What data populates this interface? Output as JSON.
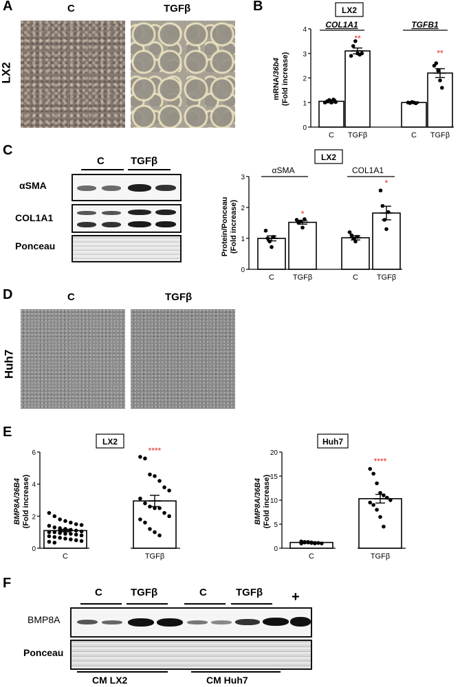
{
  "panels": {
    "A": {
      "letter": "A",
      "col_labels": [
        "C",
        "TGFβ"
      ],
      "row_label": "LX2"
    },
    "B": {
      "letter": "B",
      "cell_line": "LX2",
      "gene1": "COL1A1",
      "gene2": "TGFB1",
      "ylabel_line1_a": "mRNA/",
      "ylabel_line1_b": "36b4",
      "ylabel_line2": "(Fold increase)",
      "sig": [
        "**",
        "**"
      ],
      "ticks": [
        "0",
        "1",
        "2",
        "3",
        "4"
      ],
      "xlabels": [
        "C",
        "TGFβ",
        "C",
        "TGFβ"
      ]
    },
    "C": {
      "letter": "C",
      "group_labels": [
        "C",
        "TGFβ"
      ],
      "blot_labels": [
        "αSMA",
        "COL1A1",
        "Ponceau"
      ],
      "cell_line": "LX2",
      "gene1": "αSMA",
      "gene2": "COL1A1",
      "ylabel_line1": "Protein/Ponceau",
      "ylabel_line2": "(Fold increase)",
      "sig": [
        "*",
        "*"
      ],
      "ticks": [
        "0",
        "1",
        "2",
        "3"
      ],
      "xlabels": [
        "C",
        "TGFβ",
        "C",
        "TGFβ"
      ]
    },
    "D": {
      "letter": "D",
      "col_labels": [
        "C",
        "TGFβ"
      ],
      "row_label": "Huh7"
    },
    "E": {
      "letter": "E",
      "left": {
        "cell_line": "LX2",
        "ylabel_line1": "BMP8A/36B4",
        "ylabel_line2": "(Fold increase)",
        "sig": "****",
        "ticks": [
          "0",
          "2",
          "4",
          "6"
        ],
        "xlabels": [
          "C",
          "TGFβ"
        ]
      },
      "right": {
        "cell_line": "Huh7",
        "ylabel_line1": "BMP8A/36B4",
        "ylabel_line2": "(Fold increase)",
        "sig": "****",
        "ticks": [
          "0",
          "5",
          "10",
          "15",
          "20"
        ],
        "xlabels": [
          "C",
          "TGFβ"
        ]
      }
    },
    "F": {
      "letter": "F",
      "group_labels": [
        "C",
        "TGFβ",
        "C",
        "TGFβ",
        "+"
      ],
      "blot_labels": [
        "BMP8A",
        "Ponceau"
      ],
      "bottom_labels": [
        "CM LX2",
        "CM Huh7"
      ]
    }
  },
  "chart_data": [
    {
      "type": "bar",
      "categories": [
        "C",
        "TGFβ",
        "C",
        "TGFβ"
      ],
      "values": [
        1.05,
        3.1,
        1.0,
        2.2
      ],
      "errors": [
        0.06,
        0.12,
        0.03,
        0.18
      ],
      "points": [
        [
          1.0,
          1.05,
          1.1,
          1.0,
          1.12,
          1.02
        ],
        [
          2.9,
          3.3,
          3.5,
          3.0,
          2.95,
          3.0
        ],
        [
          1.0,
          0.98,
          1.02,
          1.0,
          0.97
        ],
        [
          2.5,
          2.6,
          2.3,
          1.9,
          1.6
        ]
      ],
      "ylim": [
        0,
        4
      ]
    },
    {
      "type": "bar",
      "categories": [
        "C",
        "TGFβ",
        "C",
        "TGFβ"
      ],
      "values": [
        1.0,
        1.52,
        1.02,
        1.82
      ],
      "errors": [
        0.08,
        0.06,
        0.07,
        0.22
      ],
      "points": [
        [
          1.25,
          1.0,
          0.9,
          0.72,
          1.05
        ],
        [
          1.6,
          1.5,
          1.55,
          1.35,
          1.62
        ],
        [
          1.2,
          1.1,
          1.0,
          0.9,
          1.05
        ],
        [
          2.55,
          2.05,
          1.6,
          1.3,
          1.85
        ]
      ],
      "ylim": [
        0,
        3
      ]
    },
    {
      "type": "bar",
      "categories": [
        "C",
        "TGFβ"
      ],
      "values": [
        1.1,
        2.95
      ],
      "errors": [
        0.08,
        0.35
      ],
      "points": [
        [
          2.2,
          2.0,
          1.8,
          1.7,
          1.6,
          1.5,
          1.45,
          1.4,
          1.3,
          1.25,
          1.2,
          1.15,
          1.1,
          1.05,
          1.0,
          1.0,
          0.95,
          0.9,
          0.9,
          0.85,
          0.8,
          0.75,
          0.7,
          0.65,
          0.6,
          0.55,
          0.5,
          0.45,
          0.4,
          0.35,
          1.1,
          1.2
        ],
        [
          5.7,
          5.6,
          4.6,
          4.5,
          4.2,
          3.8,
          3.6,
          3.1,
          2.8,
          2.6,
          2.5,
          2.5,
          2.2,
          2.0,
          1.8,
          1.6,
          1.2,
          1.0,
          0.8
        ]
      ],
      "ylim": [
        0,
        6
      ]
    },
    {
      "type": "bar",
      "categories": [
        "C",
        "TGFβ"
      ],
      "values": [
        1.2,
        10.3
      ],
      "errors": [
        0.1,
        0.9
      ],
      "points": [
        [
          1.4,
          1.3,
          1.2,
          1.2,
          1.1,
          1.1,
          1.0,
          1.0,
          1.2,
          1.3,
          1.1,
          1.0
        ],
        [
          16.5,
          15.5,
          13.5,
          11.5,
          11.0,
          10.5,
          10.0,
          9.5,
          9.0,
          8.0,
          6.5,
          4.5
        ]
      ],
      "ylim": [
        0,
        20
      ]
    }
  ]
}
